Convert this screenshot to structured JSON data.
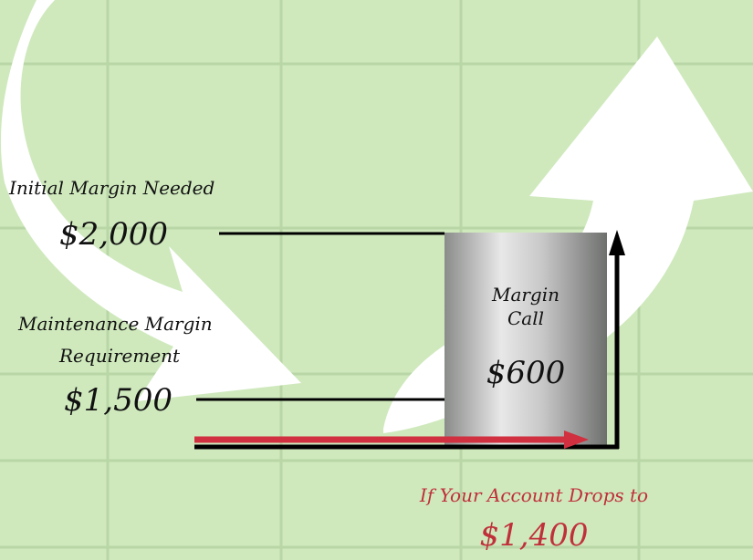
{
  "labels": {
    "initial_margin": {
      "title": "Initial Margin Needed",
      "amount": "$2,000"
    },
    "maintenance_margin": {
      "title_lines": [
        "Maintenance Margin",
        "Requirement"
      ],
      "amount": "$1,500"
    },
    "margin_call": {
      "title_lines": [
        "Margin",
        "Call"
      ],
      "amount": "$600"
    },
    "account_drop": {
      "title": "If Your Account Drops to",
      "amount": "$1,400"
    }
  }
}
